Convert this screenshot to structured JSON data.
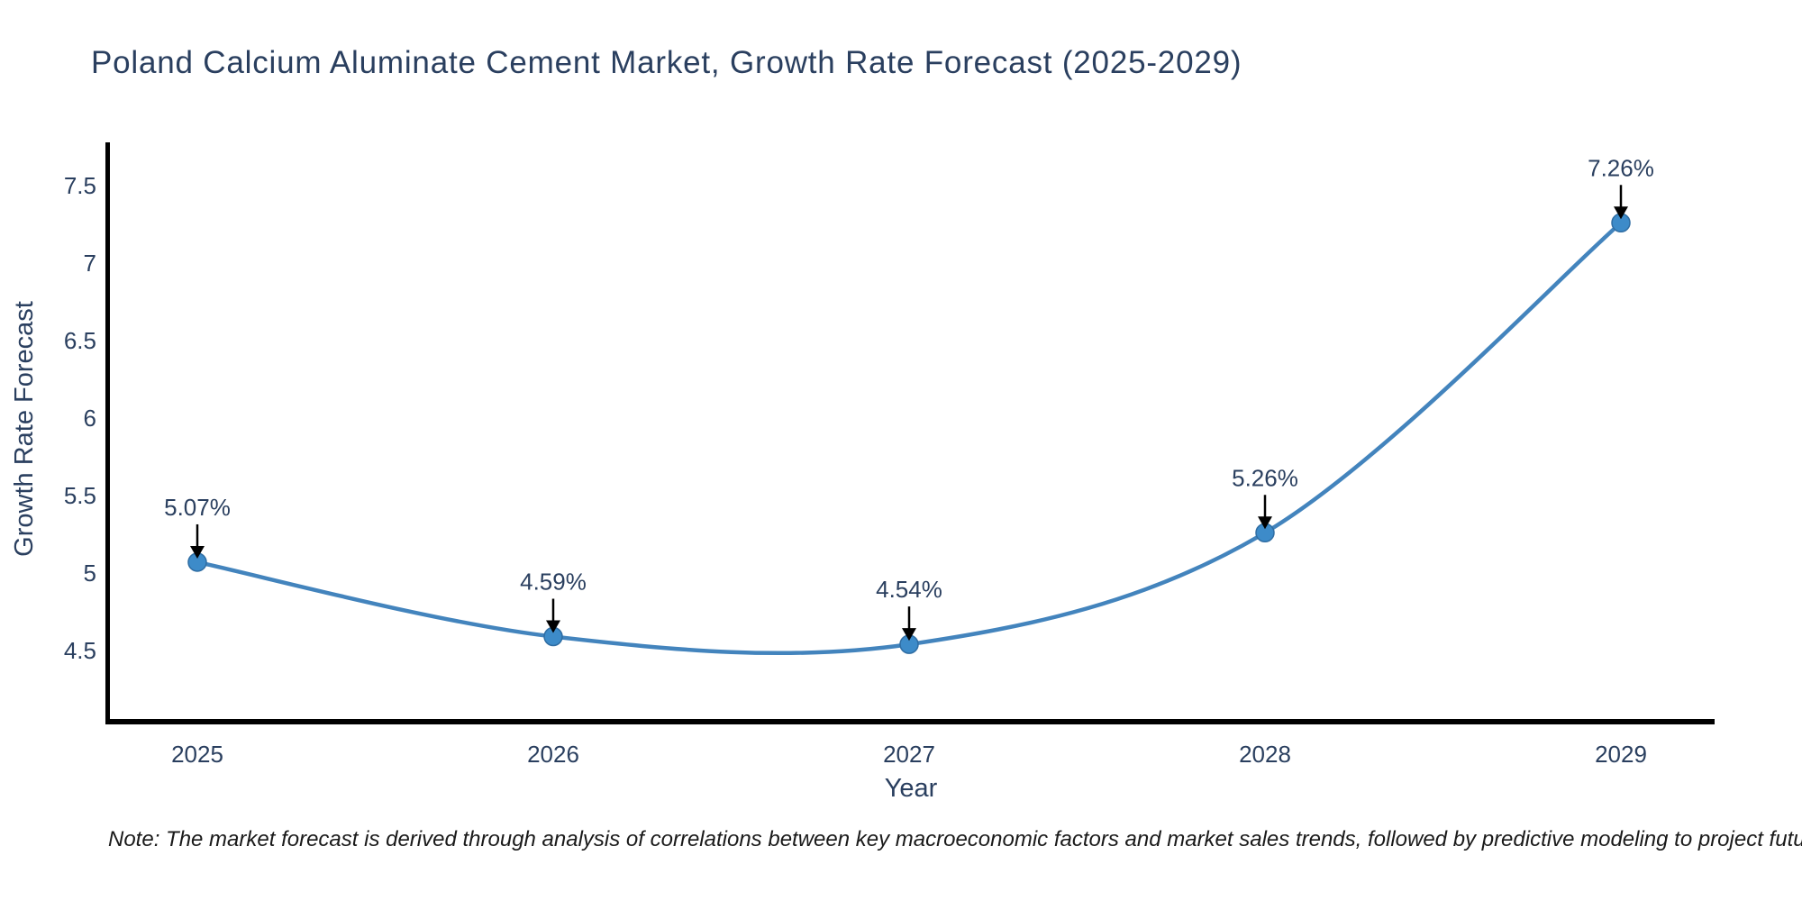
{
  "header": {
    "title": "Poland Calcium Aluminate Cement Market, Growth Rate Forecast (2025-2029)"
  },
  "chart_data": {
    "type": "line",
    "title": "Poland Calcium Aluminate Cement Market, Growth Rate Forecast (2025-2029)",
    "x": [
      2025,
      2026,
      2027,
      2028,
      2029
    ],
    "x_tick_labels": [
      "2025",
      "2026",
      "2027",
      "2028",
      "2029"
    ],
    "values": [
      5.07,
      4.59,
      4.54,
      5.26,
      7.26
    ],
    "point_labels": [
      "5.07%",
      "4.59%",
      "4.54%",
      "5.26%",
      "7.26%"
    ],
    "xlabel": "Year",
    "ylabel": "Growth Rate Forecast",
    "y_ticks": [
      4.5,
      5,
      5.5,
      6,
      6.5,
      7,
      7.5
    ],
    "y_tick_labels": [
      "4.5",
      "5",
      "5.5",
      "6",
      "6.5",
      "7",
      "7.5"
    ],
    "ylim": [
      4.08,
      7.78
    ],
    "grid": false,
    "legend": "none",
    "line_shape": "spline",
    "colors": {
      "line": "#4384bd",
      "marker": "#3d8bc9",
      "marker_edge": "#2f6da3",
      "axis": "#000000",
      "text": "#2a3f5f",
      "arrow": "#000000"
    }
  },
  "note": {
    "text": "Note: The market forecast is derived through analysis of correlations between key macroeconomic factors and market sales trends, followed by predictive modeling to project future sales"
  }
}
